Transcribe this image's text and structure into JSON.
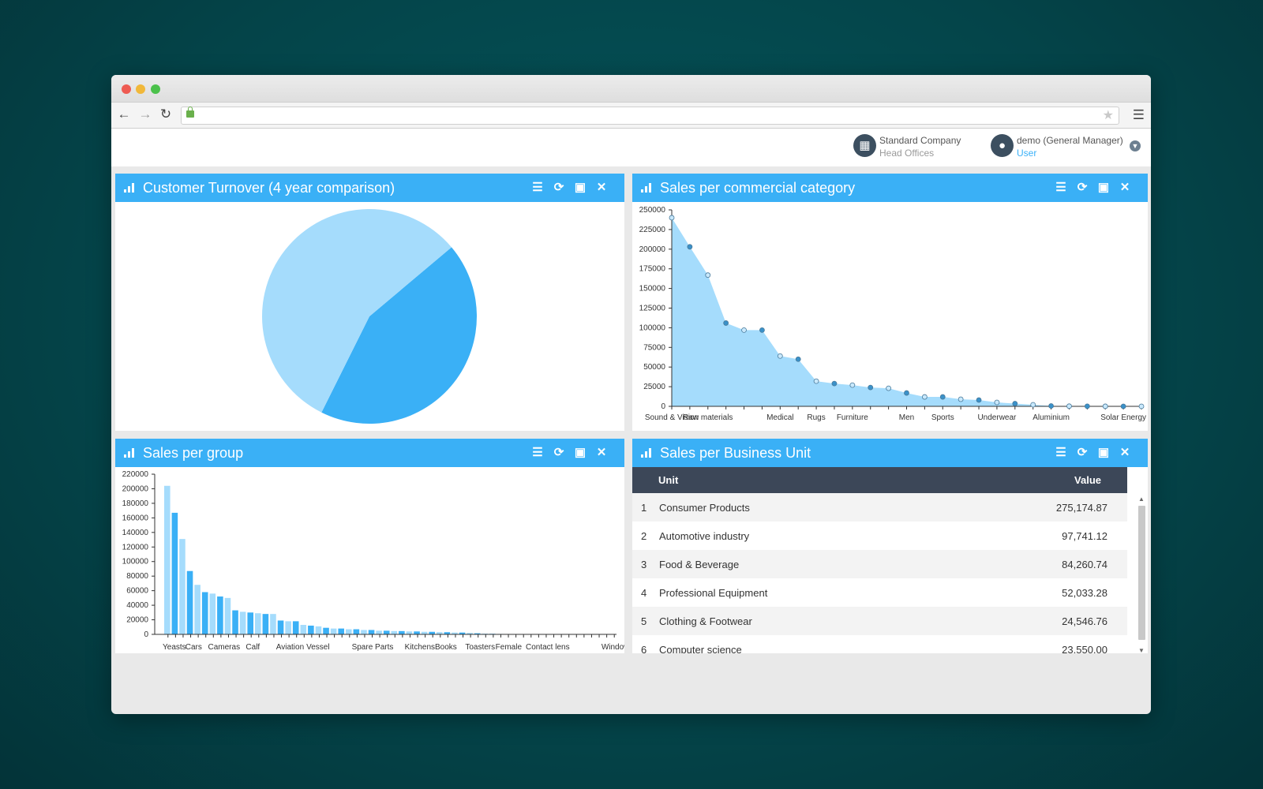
{
  "browser": {
    "back_icon": "arrow-left-icon",
    "forward_icon": "arrow-right-icon",
    "reload_icon": "reload-icon",
    "lock_icon": "lock-icon",
    "star_icon": "star-icon",
    "menu_icon": "hamburger-icon",
    "url": ""
  },
  "header": {
    "company": {
      "name": "Standard Company",
      "sub": "Head Offices",
      "icon": "building-icon"
    },
    "user": {
      "name": "demo (General Manager)",
      "role": "User",
      "icon": "user-icon"
    },
    "dropdown_icon": "chevron-down-icon"
  },
  "panels": {
    "turnover": {
      "title": "Customer Turnover (4 year comparison)"
    },
    "commercial": {
      "title": "Sales per commercial category"
    },
    "group": {
      "title": "Sales per group"
    },
    "business_unit": {
      "title": "Sales per Business Unit",
      "columns": {
        "unit": "Unit",
        "value": "Value"
      },
      "rows": [
        {
          "n": "1",
          "unit": "Consumer Products",
          "value": "275,174.87"
        },
        {
          "n": "2",
          "unit": "Automotive industry",
          "value": "97,741.12"
        },
        {
          "n": "3",
          "unit": "Food & Beverage",
          "value": "84,260.74"
        },
        {
          "n": "4",
          "unit": "Professional Equipment",
          "value": "52,033.28"
        },
        {
          "n": "5",
          "unit": "Clothing & Footwear",
          "value": "24,546.76"
        },
        {
          "n": "6",
          "unit": "Computer science",
          "value": "23,550.00"
        }
      ]
    }
  },
  "chart_data": [
    {
      "type": "pie",
      "slices": [
        {
          "value": 43.5,
          "color": "#3ab0f6"
        },
        {
          "value": 56.5,
          "color": "#a5dcfc"
        }
      ],
      "colors": {
        "dark": "#3ab0f6",
        "light": "#a5dcfc"
      }
    },
    {
      "type": "area",
      "ylim": [
        0,
        250000
      ],
      "yticks": [
        "0",
        "25000",
        "50000",
        "75000",
        "100000",
        "125000",
        "150000",
        "175000",
        "200000",
        "225000",
        "250000"
      ],
      "x_labels": [
        {
          "index": 0,
          "label": "Sound & Vision"
        },
        {
          "index": 2,
          "label": "Raw materials"
        },
        {
          "index": 6,
          "label": "Medical"
        },
        {
          "index": 8,
          "label": "Rugs"
        },
        {
          "index": 10,
          "label": "Furniture"
        },
        {
          "index": 13,
          "label": "Men"
        },
        {
          "index": 15,
          "label": "Sports"
        },
        {
          "index": 18,
          "label": "Underwear"
        },
        {
          "index": 21,
          "label": "Aluminium"
        },
        {
          "index": 25,
          "label": "Solar Energy"
        }
      ],
      "values": [
        240000,
        203000,
        167000,
        106000,
        97000,
        97000,
        64000,
        60000,
        32000,
        29000,
        27000,
        24000,
        23000,
        17000,
        12000,
        12000,
        9000,
        8000,
        5000,
        3500,
        2000,
        500,
        200,
        100,
        50,
        0,
        0
      ],
      "fill_color": "#a5dcfc",
      "marker_dark": "#3a91c9",
      "marker_light": "#c9e9fd"
    },
    {
      "type": "bar",
      "ylim": [
        0,
        220000
      ],
      "yticks": [
        "0",
        "20000",
        "40000",
        "60000",
        "80000",
        "100000",
        "120000",
        "140000",
        "160000",
        "180000",
        "200000",
        "220000"
      ],
      "x_labels": [
        {
          "index": 0,
          "label": "Yeasts"
        },
        {
          "index": 3,
          "label": "Cars"
        },
        {
          "index": 6,
          "label": "Cameras"
        },
        {
          "index": 11,
          "label": "Calf"
        },
        {
          "index": 15,
          "label": "Aviation"
        },
        {
          "index": 19,
          "label": "Vessel"
        },
        {
          "index": 25,
          "label": "Spare Parts"
        },
        {
          "index": 32,
          "label": "Kitchens"
        },
        {
          "index": 36,
          "label": "Books"
        },
        {
          "index": 40,
          "label": "Toasters"
        },
        {
          "index": 44,
          "label": "Female"
        },
        {
          "index": 48,
          "label": "Contact lens"
        },
        {
          "index": 58,
          "label": "Windows"
        }
      ],
      "values": [
        204000,
        167000,
        131000,
        87000,
        68000,
        58000,
        56000,
        52000,
        50000,
        33000,
        31000,
        30000,
        29000,
        28000,
        28000,
        19000,
        18000,
        18000,
        13000,
        12000,
        11000,
        9000,
        8000,
        8000,
        7000,
        7000,
        6000,
        6000,
        5000,
        5000,
        4500,
        4500,
        4000,
        4000,
        3500,
        3500,
        3000,
        3000,
        2500,
        2500,
        2000,
        1500,
        1000,
        800,
        600,
        500,
        400,
        350,
        300,
        250,
        200,
        200,
        150,
        150,
        100,
        100,
        80,
        60,
        50,
        40
      ],
      "colors": {
        "dark": "#3ab0f6",
        "light": "#a5dcfc"
      }
    }
  ]
}
